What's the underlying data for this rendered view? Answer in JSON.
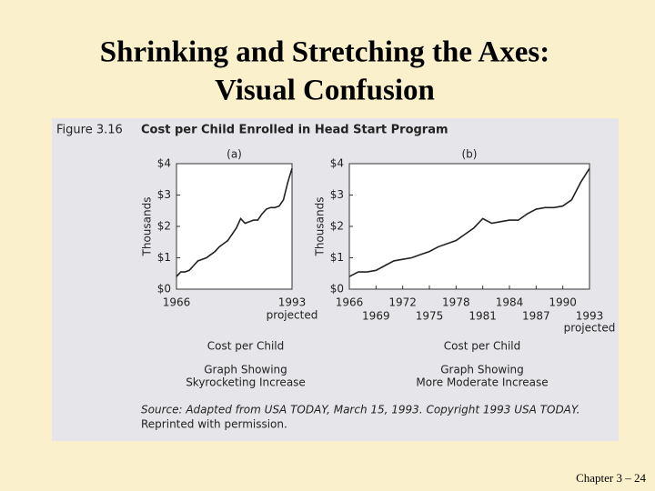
{
  "slide": {
    "title": [
      "Shrinking and Stretching the Axes:",
      "Visual Confusion"
    ],
    "footer": "Chapter 3 – 24"
  },
  "figure": {
    "label": "Figure 3.16",
    "title": "Cost per Child Enrolled in Head Start Program",
    "source": [
      "Source: Adapted from USA TODAY, March 15, 1993. Copyright 1993 USA TODAY.",
      "Reprinted with permission."
    ]
  },
  "chart_data": [
    {
      "type": "line",
      "subtitle": "(a)",
      "ylabel": "Thousands",
      "xlabel": "Cost per Child",
      "caption": [
        "Graph Showing",
        "Skyrocketing Increase"
      ],
      "x_annotation": "projected",
      "color": "#222222",
      "x": [
        1966,
        1967,
        1968,
        1969,
        1970,
        1971,
        1972,
        1973,
        1974,
        1975,
        1976,
        1977,
        1978,
        1979,
        1980,
        1981,
        1982,
        1983,
        1984,
        1985,
        1986,
        1987,
        1988,
        1989,
        1990,
        1991,
        1992,
        1993
      ],
      "values": [
        0.4,
        0.55,
        0.55,
        0.6,
        0.75,
        0.9,
        0.95,
        1.0,
        1.1,
        1.2,
        1.35,
        1.45,
        1.55,
        1.75,
        1.95,
        2.25,
        2.1,
        2.15,
        2.2,
        2.2,
        2.4,
        2.55,
        2.6,
        2.6,
        2.65,
        2.85,
        3.4,
        3.85
      ],
      "xlim": [
        1966,
        1993
      ],
      "xticks": [
        1966,
        1993
      ],
      "ylim": [
        0,
        4
      ],
      "yticks": [
        {
          "value": 0,
          "label": "$0"
        },
        {
          "value": 1,
          "label": "$1"
        },
        {
          "value": 2,
          "label": "$2"
        },
        {
          "value": 3,
          "label": "$3"
        },
        {
          "value": 4,
          "label": "$4"
        }
      ]
    },
    {
      "type": "line",
      "subtitle": "(b)",
      "ylabel": "Thousands",
      "xlabel": "Cost per Child",
      "caption": [
        "Graph Showing",
        "More Moderate Increase"
      ],
      "x_annotation": "projected",
      "color": "#222222",
      "x": [
        1966,
        1967,
        1968,
        1969,
        1970,
        1971,
        1972,
        1973,
        1974,
        1975,
        1976,
        1977,
        1978,
        1979,
        1980,
        1981,
        1982,
        1983,
        1984,
        1985,
        1986,
        1987,
        1988,
        1989,
        1990,
        1991,
        1992,
        1993
      ],
      "values": [
        0.4,
        0.55,
        0.55,
        0.6,
        0.75,
        0.9,
        0.95,
        1.0,
        1.1,
        1.2,
        1.35,
        1.45,
        1.55,
        1.75,
        1.95,
        2.25,
        2.1,
        2.15,
        2.2,
        2.2,
        2.4,
        2.55,
        2.6,
        2.6,
        2.65,
        2.85,
        3.4,
        3.85
      ],
      "xlim": [
        1966,
        1993
      ],
      "xticks": [
        1966,
        1969,
        1972,
        1975,
        1978,
        1981,
        1984,
        1987,
        1990,
        1993
      ],
      "ylim": [
        0,
        4
      ],
      "yticks": [
        {
          "value": 0,
          "label": "$0"
        },
        {
          "value": 1,
          "label": "$1"
        },
        {
          "value": 2,
          "label": "$2"
        },
        {
          "value": 3,
          "label": "$3"
        },
        {
          "value": 4,
          "label": "$4"
        }
      ]
    }
  ]
}
